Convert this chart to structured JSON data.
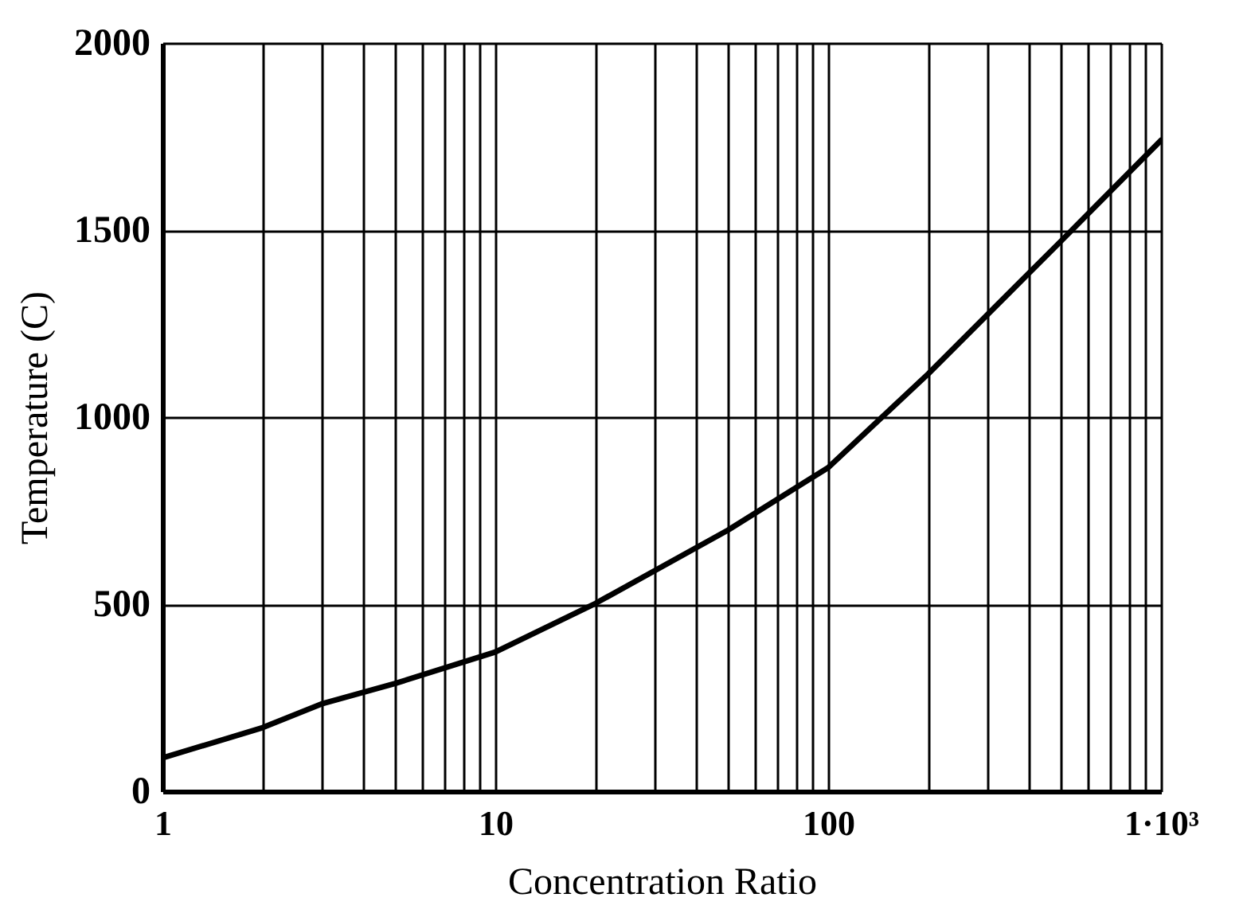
{
  "chart_data": {
    "type": "line",
    "xlabel": "Concentration Ratio",
    "ylabel": "Temperature (C)",
    "log": "x",
    "grid": true,
    "marker": "none",
    "line_style": "solid",
    "x": [
      1,
      2,
      3,
      5,
      10,
      20,
      50,
      100,
      200,
      500,
      1000
    ],
    "series": [
      {
        "color": "#000000",
        "values": [
          89,
          170,
          233,
          288,
          372,
          502,
          698,
          865,
          1116,
          1470,
          1740
        ]
      }
    ],
    "xlim": [
      1,
      1000
    ],
    "xticks": [
      1,
      {
        "value": 2,
        "label": null
      },
      {
        "value": 3,
        "label": null
      },
      {
        "value": 4,
        "label": null
      },
      {
        "value": 5,
        "label": null
      },
      {
        "value": 6,
        "label": null
      },
      {
        "value": 7,
        "label": null
      },
      {
        "value": 8,
        "label": null
      },
      {
        "value": 9,
        "label": null
      },
      10,
      {
        "value": 20,
        "label": null
      },
      {
        "value": 30,
        "label": null
      },
      {
        "value": 40,
        "label": null
      },
      {
        "value": 50,
        "label": null
      },
      {
        "value": 60,
        "label": null
      },
      {
        "value": 70,
        "label": null
      },
      {
        "value": 80,
        "label": null
      },
      {
        "value": 90,
        "label": null
      },
      100,
      {
        "value": 200,
        "label": null
      },
      {
        "value": 300,
        "label": null
      },
      {
        "value": 400,
        "label": null
      },
      {
        "value": 500,
        "label": null
      },
      {
        "value": 600,
        "label": null
      },
      {
        "value": 700,
        "label": null
      },
      {
        "value": 800,
        "label": null
      },
      {
        "value": 900,
        "label": null
      },
      {
        "value": 1000,
        "label": "1·10³"
      }
    ],
    "ylim": [
      0,
      2000
    ],
    "yticks": [
      0,
      500,
      1000,
      1500,
      2000
    ]
  }
}
